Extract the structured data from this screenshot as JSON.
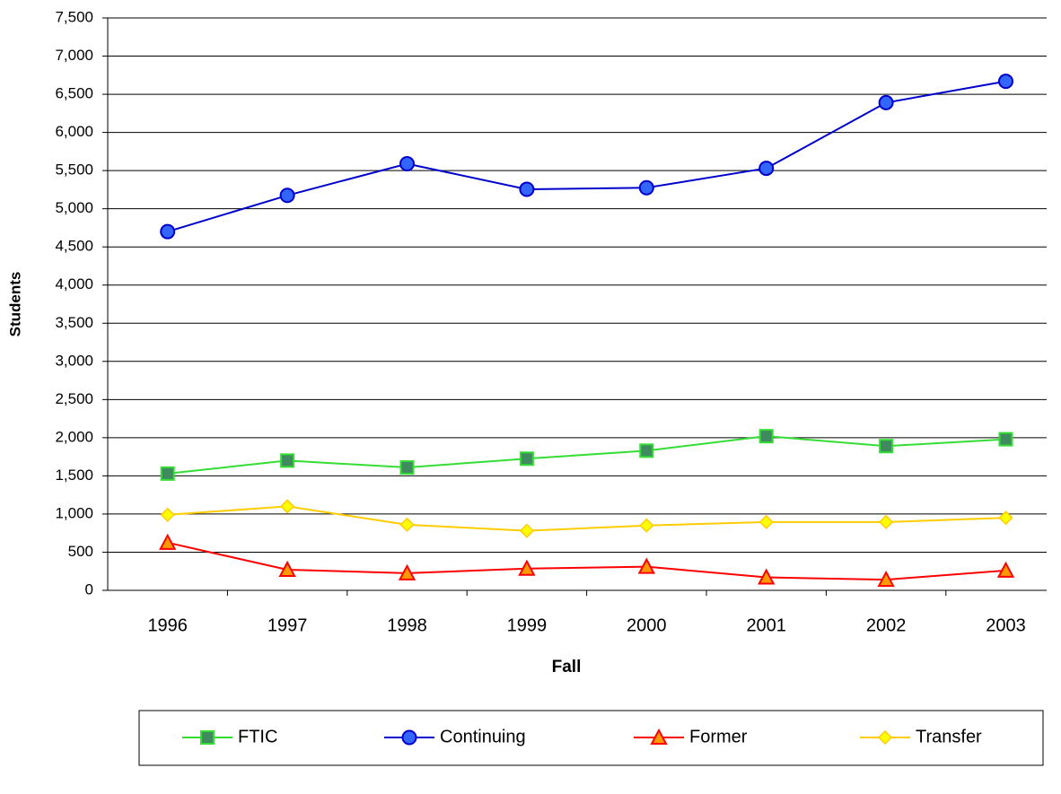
{
  "chart_data": {
    "type": "line",
    "x_label": "Fall",
    "y_label": "Students",
    "categories": [
      "1996",
      "1997",
      "1998",
      "1999",
      "2000",
      "2001",
      "2002",
      "2003"
    ],
    "series": [
      {
        "name": "FTIC",
        "color": "#33dd33",
        "marker": "square",
        "marker_color": "#3f8a5e",
        "values": [
          1530,
          1700,
          1610,
          1725,
          1830,
          2020,
          1890,
          1980
        ]
      },
      {
        "name": "Continuing",
        "color": "#0000cc",
        "marker": "circle",
        "marker_color": "#3366ff",
        "values": [
          4700,
          5175,
          5590,
          5255,
          5275,
          5530,
          6390,
          6670
        ]
      },
      {
        "name": "Former",
        "color": "#ff0000",
        "marker": "triangle",
        "marker_color": "#ff9900",
        "values": [
          625,
          270,
          225,
          285,
          310,
          170,
          140,
          260
        ]
      },
      {
        "name": "Transfer",
        "color": "#ffcc00",
        "marker": "diamond",
        "marker_color": "#ffff00",
        "values": [
          990,
          1100,
          860,
          780,
          850,
          895,
          895,
          950
        ]
      }
    ],
    "ylim": [
      0,
      7500
    ],
    "yticks": [
      0,
      500,
      {
        "value": 1000,
        "label": "1,000"
      },
      {
        "value": 1500,
        "label": "1,500"
      },
      {
        "value": 2000,
        "label": "2,000"
      },
      {
        "value": 2500,
        "label": "2,500"
      },
      {
        "value": 3000,
        "label": "3,000"
      },
      {
        "value": 3500,
        "label": "3,500"
      },
      {
        "value": 4000,
        "label": "4,000"
      },
      {
        "value": 4500,
        "label": "4,500"
      },
      {
        "value": 5000,
        "label": "5,000"
      },
      {
        "value": 5500,
        "label": "5,500"
      },
      {
        "value": 6000,
        "label": "6,000"
      },
      {
        "value": 6500,
        "label": "6,500"
      },
      {
        "value": 7000,
        "label": "7,000"
      },
      {
        "value": 7500,
        "label": "7,500"
      }
    ],
    "grid": true,
    "legend": "bottom"
  }
}
